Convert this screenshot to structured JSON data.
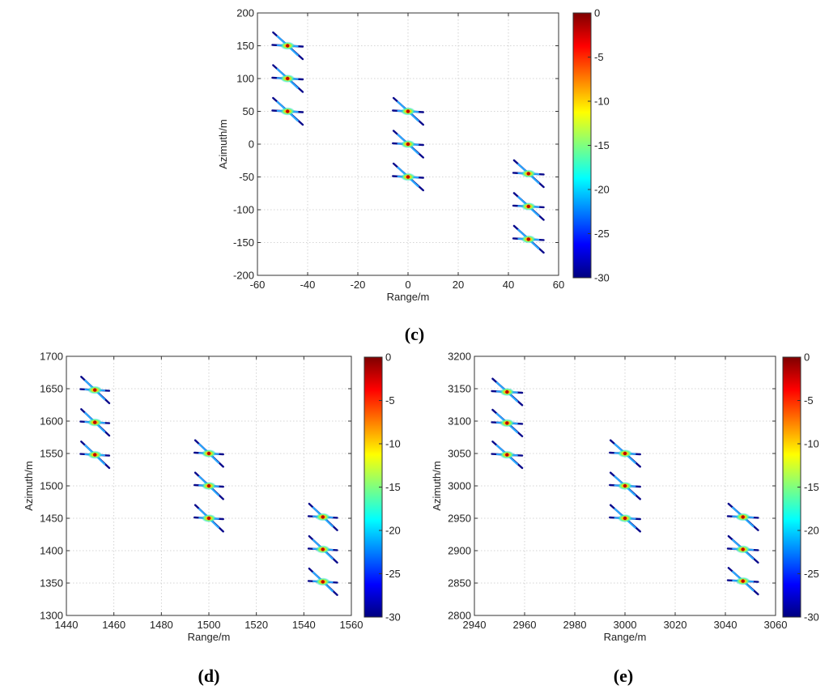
{
  "colorbar": {
    "colormap": "jet",
    "range": [
      -30,
      0
    ],
    "ticks": [
      "0",
      "-5",
      "-10",
      "-15",
      "-20",
      "-25",
      "-30"
    ],
    "colors": [
      "#00007f",
      "#0000ff",
      "#007fff",
      "#00ffff",
      "#7fff7f",
      "#ffff00",
      "#ff7f00",
      "#ff0000",
      "#7f0000"
    ]
  },
  "chart_data": [
    {
      "type": "scatter",
      "panel_label": "(c)",
      "xlabel": "Range/m",
      "ylabel": "Azimuth/m",
      "xlim": [
        -60,
        60
      ],
      "ylim": [
        -200,
        200
      ],
      "xticks": [
        -60,
        -40,
        -20,
        0,
        20,
        40,
        60
      ],
      "yticks": [
        -200,
        -150,
        -100,
        -50,
        0,
        50,
        100,
        150,
        200
      ],
      "grid": true,
      "points": [
        {
          "x": -48,
          "y": 150
        },
        {
          "x": -48,
          "y": 100
        },
        {
          "x": -48,
          "y": 50
        },
        {
          "x": 0,
          "y": 50
        },
        {
          "x": 0,
          "y": 0
        },
        {
          "x": 0,
          "y": -50
        },
        {
          "x": 48,
          "y": -45
        },
        {
          "x": 48,
          "y": -95
        },
        {
          "x": 48,
          "y": -145
        }
      ]
    },
    {
      "type": "scatter",
      "panel_label": "(d)",
      "xlabel": "Range/m",
      "ylabel": "Azimuth/m",
      "xlim": [
        1440,
        1560
      ],
      "ylim": [
        1300,
        1700
      ],
      "xticks": [
        1440,
        1460,
        1480,
        1500,
        1520,
        1540,
        1560
      ],
      "yticks": [
        1300,
        1350,
        1400,
        1450,
        1500,
        1550,
        1600,
        1650,
        1700
      ],
      "grid": true,
      "points": [
        {
          "x": 1452,
          "y": 1648
        },
        {
          "x": 1452,
          "y": 1598
        },
        {
          "x": 1452,
          "y": 1548
        },
        {
          "x": 1500,
          "y": 1550
        },
        {
          "x": 1500,
          "y": 1500
        },
        {
          "x": 1500,
          "y": 1450
        },
        {
          "x": 1548,
          "y": 1452
        },
        {
          "x": 1548,
          "y": 1402
        },
        {
          "x": 1548,
          "y": 1352
        }
      ]
    },
    {
      "type": "scatter",
      "panel_label": "(e)",
      "xlabel": "Range/m",
      "ylabel": "Azimuth/m",
      "xlim": [
        2940,
        3060
      ],
      "ylim": [
        2800,
        3200
      ],
      "xticks": [
        2940,
        2960,
        2980,
        3000,
        3020,
        3040,
        3060
      ],
      "yticks": [
        2800,
        2850,
        2900,
        2950,
        3000,
        3050,
        3100,
        3150,
        3200
      ],
      "grid": true,
      "points": [
        {
          "x": 2953,
          "y": 3145
        },
        {
          "x": 2953,
          "y": 3097
        },
        {
          "x": 2953,
          "y": 3048
        },
        {
          "x": 3000,
          "y": 3050
        },
        {
          "x": 3000,
          "y": 3000
        },
        {
          "x": 3000,
          "y": 2950
        },
        {
          "x": 3047,
          "y": 2952
        },
        {
          "x": 3047,
          "y": 2902
        },
        {
          "x": 3047,
          "y": 2853
        }
      ]
    }
  ]
}
